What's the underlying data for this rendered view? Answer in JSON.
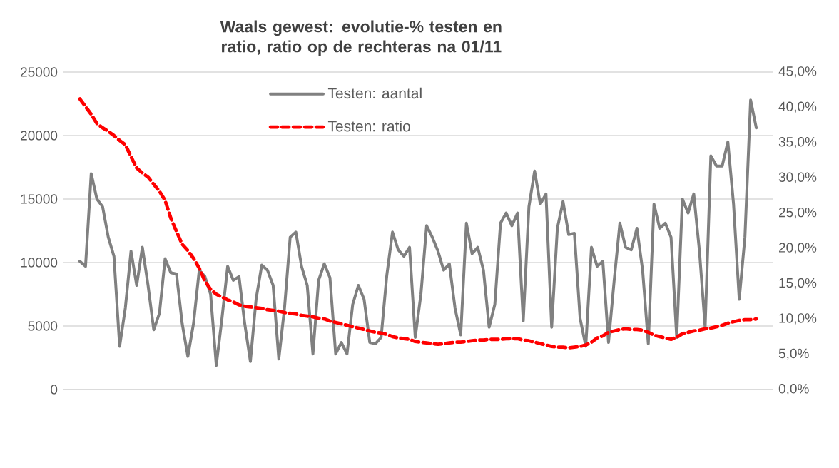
{
  "chart_data": {
    "type": "line",
    "title": "Waals gewest: evolutie-% testen en ratio, ratio op de rechteras na 01/11",
    "categories": [
      null,
      null,
      null,
      null,
      null,
      null,
      null,
      null,
      null,
      null,
      null,
      null,
      null,
      null,
      null,
      null,
      null,
      null,
      null,
      null,
      null,
      null,
      null,
      null,
      null,
      null,
      null,
      null,
      null,
      null,
      null,
      null,
      null,
      null,
      null,
      null,
      null,
      null,
      null,
      null,
      null,
      null,
      null,
      null,
      null,
      null,
      null,
      null,
      null,
      null,
      null,
      null,
      null,
      null,
      null,
      null,
      null,
      null,
      null,
      null,
      null,
      null,
      null,
      null,
      null,
      null,
      null,
      null,
      null,
      null,
      null,
      null,
      null,
      null,
      null,
      null,
      null,
      null,
      null,
      null,
      null,
      null,
      null,
      null,
      null,
      null,
      null,
      null,
      null,
      null,
      null,
      null,
      null,
      null,
      null,
      null,
      null,
      null,
      null,
      null,
      null,
      null,
      null,
      null,
      null,
      null,
      null,
      null,
      null,
      null,
      null,
      null,
      null,
      null,
      null,
      null,
      null,
      null,
      null,
      null
    ],
    "ylim": [
      0,
      25000
    ],
    "yticks": [
      0,
      5000,
      10000,
      15000,
      20000,
      25000
    ],
    "y2lim": [
      0,
      45
    ],
    "y2ticks": [
      {
        "value": 0,
        "label": "0,0%"
      },
      {
        "value": 5,
        "label": "5,0%"
      },
      {
        "value": 10,
        "label": "10,0%"
      },
      {
        "value": 15,
        "label": "15,0%"
      },
      {
        "value": 20,
        "label": "20,0%"
      },
      {
        "value": 25,
        "label": "25,0%"
      },
      {
        "value": 30,
        "label": "30,0%"
      },
      {
        "value": 35,
        "label": "35,0%"
      },
      {
        "value": 40,
        "label": "40,0%"
      },
      {
        "value": 45,
        "label": "45,0%"
      }
    ],
    "grid": "y",
    "legend": "top",
    "marker": "none",
    "series": [
      {
        "name": "Testen: aantal",
        "color": "#808080",
        "line_style": "solid",
        "values": [
          10100,
          9700,
          17000,
          15000,
          14400,
          12000,
          10500,
          3400,
          6400,
          10900,
          8200,
          11200,
          8200,
          4700,
          6000,
          10300,
          9200,
          9100,
          5200,
          2600,
          5200,
          9400,
          8900,
          7500,
          1900,
          5600,
          9700,
          8600,
          8900,
          5200,
          2200,
          7100,
          9800,
          9400,
          8200,
          2400,
          6400,
          12000,
          12400,
          9700,
          8200,
          2800,
          8600,
          9900,
          8800,
          2800,
          3700,
          2800,
          6700,
          8200,
          7100,
          3700,
          3600,
          4100,
          9000,
          12400,
          11000,
          10500,
          11200,
          4100,
          7500,
          12900,
          12000,
          10900,
          9400,
          9900,
          6400,
          4300,
          13100,
          10700,
          11200,
          9400,
          4900,
          6700,
          13100,
          13900,
          12900,
          13900,
          5400,
          14400,
          17200,
          14600,
          15400,
          4900,
          12700,
          14800,
          12200,
          12300,
          5600,
          3400,
          11200,
          9700,
          10100,
          3700,
          8600,
          13100,
          11200,
          11000,
          12700,
          9400,
          3600,
          14600,
          12700,
          13100,
          12000,
          4100,
          15000,
          13900,
          15400,
          10900,
          4900,
          18400,
          17600,
          17600,
          19500,
          14600,
          7100,
          12000,
          22800,
          20600
        ]
      },
      {
        "name": "Testen: ratio",
        "color": "#ff0000",
        "line_style": "dashed",
        "axis": "y2",
        "values": [
          41.2,
          40.1,
          39.0,
          37.7,
          37.1,
          36.6,
          36.0,
          35.3,
          34.7,
          33.0,
          31.4,
          30.7,
          30.1,
          29.1,
          28.1,
          26.8,
          24.3,
          22.4,
          20.6,
          19.7,
          18.6,
          17.2,
          15.4,
          14.2,
          13.5,
          13.1,
          12.7,
          12.4,
          12.0,
          11.8,
          11.7,
          11.6,
          11.5,
          11.3,
          11.2,
          11.1,
          10.9,
          10.8,
          10.7,
          10.5,
          10.4,
          10.3,
          10.1,
          10.0,
          9.7,
          9.5,
          9.3,
          9.1,
          8.9,
          8.7,
          8.5,
          8.3,
          8.1,
          8.0,
          7.8,
          7.5,
          7.3,
          7.2,
          7.1,
          6.8,
          6.7,
          6.6,
          6.5,
          6.4,
          6.5,
          6.6,
          6.7,
          6.7,
          6.8,
          6.9,
          7.0,
          7.0,
          7.1,
          7.1,
          7.1,
          7.2,
          7.2,
          7.2,
          7.0,
          6.9,
          6.7,
          6.5,
          6.3,
          6.1,
          6.0,
          6.0,
          5.9,
          6.0,
          6.1,
          6.3,
          6.7,
          7.3,
          7.6,
          8.1,
          8.3,
          8.5,
          8.6,
          8.5,
          8.5,
          8.4,
          8.1,
          7.7,
          7.5,
          7.3,
          7.1,
          7.4,
          7.9,
          8.1,
          8.3,
          8.4,
          8.6,
          8.7,
          8.9,
          9.1,
          9.4,
          9.6,
          9.8,
          9.9,
          9.9,
          10.0
        ]
      }
    ]
  }
}
